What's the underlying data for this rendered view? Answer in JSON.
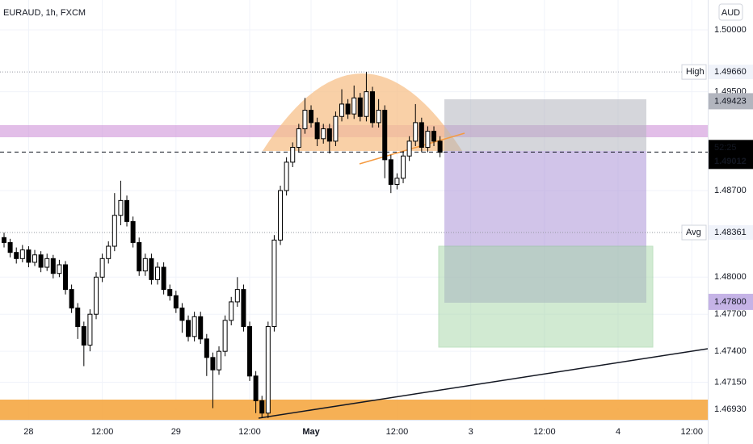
{
  "chart_data": {
    "type": "candlestick",
    "title": "EURAUD, 1h, FXCM",
    "currency": "AUD",
    "up_color": "#ffffff",
    "down_color": "#000000",
    "ylim": [
      1.46846,
      1.50242
    ],
    "yticks": [
      {
        "value": 1.5,
        "label": "1.50000"
      },
      {
        "value": 1.495,
        "label": "1.49500"
      },
      {
        "value": 1.487,
        "label": "1.48700"
      },
      {
        "value": 1.48,
        "label": "1.48000"
      },
      {
        "value": 1.477,
        "label": "1.47700"
      },
      {
        "value": 1.474,
        "label": "1.47400"
      },
      {
        "value": 1.4715,
        "label": "1.47150"
      },
      {
        "value": 1.4693,
        "label": "1.46930"
      }
    ],
    "xlim": [
      -0.66,
      114.6
    ],
    "xticks": [
      {
        "value": 4,
        "label": "28"
      },
      {
        "value": 16,
        "label": "12:00"
      },
      {
        "value": 28,
        "label": "29"
      },
      {
        "value": 40,
        "label": "12:00"
      },
      {
        "value": 50,
        "label": "May"
      },
      {
        "value": 64,
        "label": "12:00"
      },
      {
        "value": 76,
        "label": "3"
      },
      {
        "value": 88,
        "label": "12:00"
      },
      {
        "value": 100,
        "label": "4"
      },
      {
        "value": 112,
        "label": "12:00"
      }
    ],
    "levels": [
      {
        "name": "High",
        "value": 1.4966,
        "label": "1.49660"
      },
      {
        "name": "Avg",
        "value": 1.48361,
        "label": "1.48361"
      }
    ],
    "last_price": {
      "value": 1.49012,
      "label": "1.49012",
      "countdown": "52:25"
    },
    "markers": [
      {
        "value": 1.49423,
        "label": "1.49423",
        "color": "#b2b5be"
      },
      {
        "value": 1.478,
        "label": "1.47800",
        "color": "#c5b3e6"
      }
    ],
    "candles": [
      [
        1.4832,
        1.4836,
        1.4824,
        1.4828
      ],
      [
        1.4828,
        1.4831,
        1.4816,
        1.482
      ],
      [
        1.482,
        1.4824,
        1.4811,
        1.4815
      ],
      [
        1.4815,
        1.4826,
        1.4812,
        1.4822
      ],
      [
        1.4822,
        1.4825,
        1.4808,
        1.4812
      ],
      [
        1.4812,
        1.4822,
        1.4809,
        1.4818
      ],
      [
        1.4818,
        1.4821,
        1.4804,
        1.4808
      ],
      [
        1.4808,
        1.4819,
        1.4805,
        1.4815
      ],
      [
        1.4815,
        1.4818,
        1.4799,
        1.4803
      ],
      [
        1.4803,
        1.4814,
        1.48,
        1.481
      ],
      [
        1.481,
        1.4813,
        1.4786,
        1.479
      ],
      [
        1.479,
        1.4794,
        1.4771,
        1.4775
      ],
      [
        1.4775,
        1.4779,
        1.475,
        1.476
      ],
      [
        1.476,
        1.4764,
        1.4728,
        1.4745
      ],
      [
        1.4745,
        1.4774,
        1.474,
        1.477
      ],
      [
        1.477,
        1.4804,
        1.4766,
        1.48
      ],
      [
        1.48,
        1.4819,
        1.4796,
        1.4815
      ],
      [
        1.4815,
        1.4829,
        1.4811,
        1.4825
      ],
      [
        1.4825,
        1.4868,
        1.4821,
        1.485
      ],
      [
        1.485,
        1.4878,
        1.4842,
        1.4862
      ],
      [
        1.4862,
        1.4866,
        1.4841,
        1.4845
      ],
      [
        1.4845,
        1.4849,
        1.4824,
        1.4828
      ],
      [
        1.4828,
        1.4832,
        1.4801,
        1.4805
      ],
      [
        1.4805,
        1.4819,
        1.4801,
        1.4815
      ],
      [
        1.4815,
        1.4819,
        1.4794,
        1.4798
      ],
      [
        1.4798,
        1.4812,
        1.4794,
        1.4808
      ],
      [
        1.4808,
        1.4812,
        1.4786,
        1.479
      ],
      [
        1.479,
        1.4794,
        1.4781,
        1.4785
      ],
      [
        1.4785,
        1.4789,
        1.4771,
        1.4775
      ],
      [
        1.4775,
        1.4779,
        1.4755,
        1.4765
      ],
      [
        1.4765,
        1.4769,
        1.4748,
        1.4752
      ],
      [
        1.4752,
        1.4772,
        1.4748,
        1.4768
      ],
      [
        1.4768,
        1.4772,
        1.4746,
        1.475
      ],
      [
        1.475,
        1.4754,
        1.472,
        1.4735
      ],
      [
        1.4735,
        1.4739,
        1.4694,
        1.4725
      ],
      [
        1.4725,
        1.4744,
        1.4721,
        1.474
      ],
      [
        1.474,
        1.4769,
        1.4736,
        1.4765
      ],
      [
        1.4765,
        1.4784,
        1.4761,
        1.478
      ],
      [
        1.478,
        1.48,
        1.4776,
        1.479
      ],
      [
        1.479,
        1.4794,
        1.4756,
        1.476
      ],
      [
        1.476,
        1.4764,
        1.4716,
        1.472
      ],
      [
        1.472,
        1.4724,
        1.469,
        1.47
      ],
      [
        1.47,
        1.4704,
        1.4686,
        1.469
      ],
      [
        1.469,
        1.4764,
        1.4686,
        1.476
      ],
      [
        1.476,
        1.4834,
        1.4756,
        1.483
      ],
      [
        1.483,
        1.4874,
        1.4826,
        1.487
      ],
      [
        1.487,
        1.4897,
        1.4866,
        1.4893
      ],
      [
        1.4893,
        1.4909,
        1.4889,
        1.4905
      ],
      [
        1.4905,
        1.4924,
        1.4901,
        1.492
      ],
      [
        1.492,
        1.4945,
        1.4916,
        1.4935
      ],
      [
        1.4935,
        1.4939,
        1.4921,
        1.4925
      ],
      [
        1.4925,
        1.4929,
        1.4906,
        1.4912
      ],
      [
        1.4912,
        1.4924,
        1.4908,
        1.492
      ],
      [
        1.492,
        1.4924,
        1.49,
        1.491
      ],
      [
        1.491,
        1.4934,
        1.4906,
        1.493
      ],
      [
        1.493,
        1.4952,
        1.4926,
        1.494
      ],
      [
        1.494,
        1.4944,
        1.4928,
        1.4932
      ],
      [
        1.4932,
        1.4955,
        1.4928,
        1.4945
      ],
      [
        1.4945,
        1.4949,
        1.4926,
        1.493
      ],
      [
        1.493,
        1.4966,
        1.4926,
        1.495
      ],
      [
        1.495,
        1.4954,
        1.4921,
        1.4925
      ],
      [
        1.4925,
        1.4944,
        1.4921,
        1.4935
      ],
      [
        1.4935,
        1.4939,
        1.488,
        1.4895
      ],
      [
        1.4895,
        1.4899,
        1.4868,
        1.4875
      ],
      [
        1.4875,
        1.4884,
        1.4871,
        1.488
      ],
      [
        1.488,
        1.4902,
        1.4876,
        1.4898
      ],
      [
        1.4898,
        1.4914,
        1.4894,
        1.491
      ],
      [
        1.491,
        1.494,
        1.4906,
        1.4925
      ],
      [
        1.4925,
        1.4929,
        1.4901,
        1.4905
      ],
      [
        1.4905,
        1.4922,
        1.4901,
        1.4918
      ],
      [
        1.4918,
        1.4922,
        1.4906,
        1.491
      ],
      [
        1.491,
        1.4914,
        1.4897,
        1.4901
      ]
    ]
  }
}
